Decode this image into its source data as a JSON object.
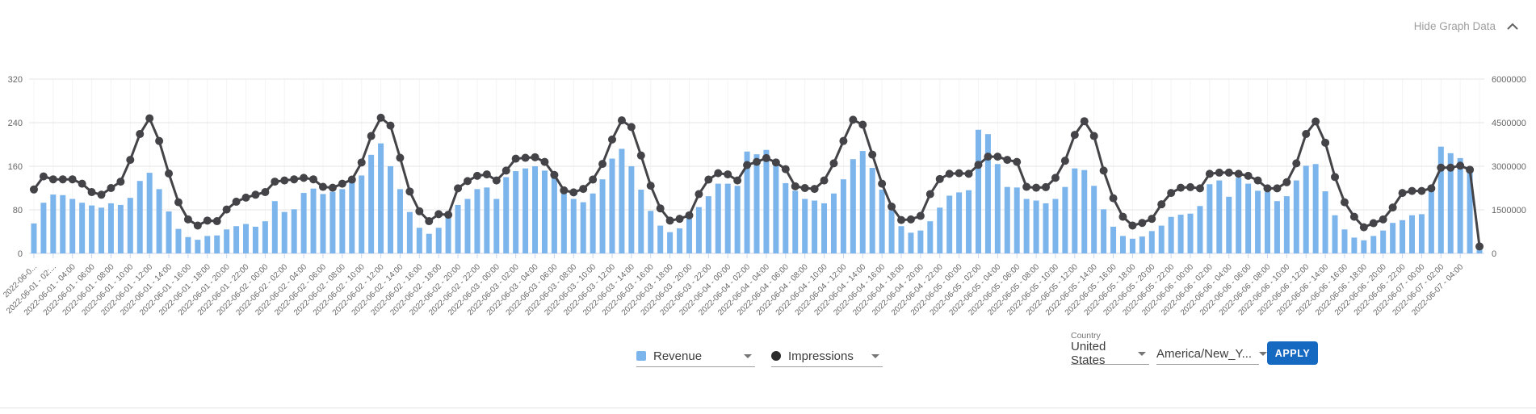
{
  "header": {
    "hide_graph_label": "Hide Graph Data"
  },
  "legend": {
    "revenue": {
      "label": "Revenue",
      "color": "#7cb5ec"
    },
    "impressions": {
      "label": "Impressions",
      "color": "#434348"
    }
  },
  "filters": {
    "country_label": "Country",
    "country_value": "United States",
    "timezone_value": "America/New_Y...",
    "apply_label": "APPLY"
  },
  "chart_data": {
    "type": "bar",
    "subtype": "bar+line combo, dual axis",
    "title": "",
    "xlabel": "",
    "ylabel_left": "",
    "ylabel_right": "",
    "grid": true,
    "legend_position": "bottom",
    "x_start": "2022-06-01 00:00",
    "x_step_hours": 1,
    "left_axis": {
      "ticks": [
        0,
        80,
        160,
        240,
        320
      ],
      "max": 320
    },
    "right_axis": {
      "ticks": [
        0,
        1500000,
        3000000,
        4500000,
        6000000
      ],
      "max": 6000000
    },
    "x_tick_labels": [
      "2022-06-0...",
      "2022-06-01 - 02:...",
      "2022-06-01 - 04:00",
      "2022-06-01 - 06:00",
      "2022-06-01 - 08:00",
      "2022-06-01 - 10:00",
      "2022-06-01 - 12:00",
      "2022-06-01 - 14:00",
      "2022-06-01 - 16:00",
      "2022-06-01 - 18:00",
      "2022-06-01 - 20:00",
      "2022-06-01 - 22:00",
      "2022-06-02 - 00:00",
      "2022-06-02 - 02:00",
      "2022-06-02 - 04:00",
      "2022-06-02 - 06:00",
      "2022-06-02 - 08:00",
      "2022-06-02 - 10:00",
      "2022-06-02 - 12:00",
      "2022-06-02 - 14:00",
      "2022-06-02 - 16:00",
      "2022-06-02 - 18:00",
      "2022-06-02 - 20:00",
      "2022-06-02 - 22:00",
      "2022-06-03 - 00:00",
      "2022-06-03 - 02:00",
      "2022-06-03 - 04:00",
      "2022-06-03 - 06:00",
      "2022-06-03 - 08:00",
      "2022-06-03 - 10:00",
      "2022-06-03 - 12:00",
      "2022-06-03 - 14:00",
      "2022-06-03 - 16:00",
      "2022-06-03 - 18:00",
      "2022-06-03 - 20:00",
      "2022-06-03 - 22:00",
      "2022-06-04 - 00:00",
      "2022-06-04 - 02:00",
      "2022-06-04 - 04:00",
      "2022-06-04 - 06:00",
      "2022-06-04 - 08:00",
      "2022-06-04 - 10:00",
      "2022-06-04 - 12:00",
      "2022-06-04 - 14:00",
      "2022-06-04 - 16:00",
      "2022-06-04 - 18:00",
      "2022-06-04 - 20:00",
      "2022-06-04 - 22:00",
      "2022-06-05 - 00:00",
      "2022-06-05 - 02:00",
      "2022-06-05 - 04:00",
      "2022-06-05 - 06:00",
      "2022-06-05 - 08:00",
      "2022-06-05 - 10:00",
      "2022-06-05 - 12:00",
      "2022-06-05 - 14:00",
      "2022-06-05 - 16:00",
      "2022-06-05 - 18:00",
      "2022-06-05 - 20:00",
      "2022-06-05 - 22:00",
      "2022-06-06 - 00:00",
      "2022-06-06 - 02:00",
      "2022-06-06 - 04:00",
      "2022-06-06 - 06:00",
      "2022-06-06 - 08:00",
      "2022-06-06 - 10:00",
      "2022-06-06 - 12:00",
      "2022-06-06 - 14:00",
      "2022-06-06 - 16:00",
      "2022-06-06 - 18:00",
      "2022-06-06 - 20:00",
      "2022-06-06 - 22:00",
      "2022-06-07 - 00:00",
      "2022-06-07 - 02:00",
      "2022-06-07 - 04:00"
    ],
    "series": [
      {
        "name": "Revenue",
        "type": "bar",
        "axis": "left",
        "color": "#7cb5ec",
        "values": [
          55,
          93,
          108,
          107,
          100,
          93,
          88,
          84,
          92,
          89,
          102,
          133,
          148,
          118,
          77,
          45,
          30,
          25,
          32,
          33,
          44,
          50,
          54,
          49,
          59,
          96,
          76,
          81,
          111,
          119,
          109,
          113,
          118,
          130,
          143,
          181,
          202,
          160,
          118,
          76,
          47,
          36,
          47,
          65,
          89,
          100,
          118,
          121,
          100,
          140,
          151,
          156,
          160,
          152,
          141,
          113,
          100,
          94,
          110,
          136,
          174,
          192,
          160,
          117,
          78,
          51,
          39,
          46,
          64,
          85,
          105,
          128,
          128,
          124,
          187,
          182,
          190,
          168,
          129,
          115,
          100,
          97,
          92,
          110,
          136,
          173,
          188,
          157,
          117,
          79,
          50,
          38,
          42,
          59,
          84,
          106,
          112,
          116,
          227,
          219,
          164,
          122,
          121,
          100,
          97,
          92,
          100,
          122,
          156,
          153,
          124,
          81,
          49,
          32,
          27,
          31,
          41,
          51,
          67,
          71,
          73,
          87,
          127,
          134,
          104,
          139,
          128,
          115,
          113,
          96,
          105,
          134,
          161,
          164,
          114,
          70,
          44,
          29,
          24,
          32,
          42,
          56,
          61,
          70,
          72,
          118,
          196,
          184,
          175,
          153,
          8
        ]
      },
      {
        "name": "Impressions",
        "type": "line",
        "axis": "right",
        "color": "#434348",
        "values": [
          2200000,
          2650000,
          2550000,
          2550000,
          2550000,
          2400000,
          2110000,
          2020000,
          2250000,
          2470000,
          3220000,
          4110000,
          4650000,
          3870000,
          2750000,
          1760000,
          1170000,
          960000,
          1130000,
          1110000,
          1510000,
          1780000,
          1920000,
          2020000,
          2110000,
          2470000,
          2510000,
          2550000,
          2600000,
          2550000,
          2290000,
          2260000,
          2400000,
          2540000,
          3130000,
          4040000,
          4670000,
          4400000,
          3290000,
          2130000,
          1450000,
          1110000,
          1350000,
          1330000,
          2240000,
          2490000,
          2670000,
          2720000,
          2510000,
          2850000,
          3260000,
          3290000,
          3310000,
          3150000,
          2700000,
          2170000,
          2100000,
          2220000,
          2540000,
          3080000,
          3920000,
          4580000,
          4350000,
          3370000,
          2330000,
          1550000,
          1130000,
          1190000,
          1310000,
          2040000,
          2540000,
          2760000,
          2720000,
          2510000,
          3040000,
          3150000,
          3280000,
          3130000,
          2900000,
          2310000,
          2250000,
          2220000,
          2510000,
          3100000,
          3870000,
          4600000,
          4430000,
          3400000,
          2400000,
          1610000,
          1150000,
          1170000,
          1290000,
          2040000,
          2560000,
          2740000,
          2760000,
          2740000,
          3050000,
          3330000,
          3330000,
          3220000,
          3150000,
          2290000,
          2260000,
          2280000,
          2600000,
          3190000,
          4080000,
          4550000,
          4040000,
          2850000,
          1900000,
          1260000,
          960000,
          1050000,
          1190000,
          1690000,
          2080000,
          2260000,
          2280000,
          2240000,
          2740000,
          2780000,
          2780000,
          2740000,
          2670000,
          2510000,
          2240000,
          2240000,
          2450000,
          3100000,
          4110000,
          4540000,
          3810000,
          2630000,
          1760000,
          1260000,
          900000,
          1040000,
          1170000,
          1580000,
          2080000,
          2150000,
          2150000,
          2240000,
          2950000,
          2950000,
          3020000,
          2880000,
          240000
        ]
      }
    ]
  }
}
